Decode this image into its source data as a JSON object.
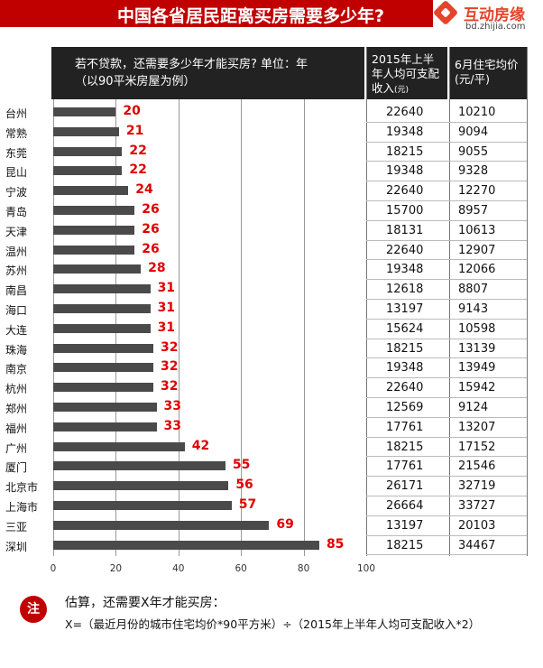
{
  "title": "中国各省居民距离买房需要多少年?",
  "logo": {
    "name": "互动房缘",
    "url": "bd.zhijia.com"
  },
  "table_header": {
    "question_line1": "若不贷款，还需要多少年才能买房?  单位：年",
    "question_line2": "（以90平米房屋为例）",
    "income_line1": "2015年上半",
    "income_line2": "年人均可支配",
    "income_line3": "收入",
    "income_unit": "(元)",
    "price_line1": "6月住宅均价",
    "price_line2": "(元/平)"
  },
  "chart_data": {
    "type": "bar",
    "orientation": "horizontal",
    "categories": [
      "台州",
      "常熟",
      "东莞",
      "昆山",
      "宁波",
      "青岛",
      "天津",
      "温州",
      "苏州",
      "南昌",
      "海口",
      "大连",
      "珠海",
      "南京",
      "杭州",
      "郑州",
      "福州",
      "广州",
      "厦门",
      "北京市",
      "上海市",
      "三亚",
      "深圳"
    ],
    "values": [
      20,
      21,
      22,
      22,
      24,
      26,
      26,
      26,
      28,
      31,
      31,
      31,
      32,
      32,
      32,
      33,
      33,
      42,
      55,
      56,
      57,
      69,
      85
    ],
    "income": [
      22640,
      19348,
      18215,
      19348,
      22640,
      15700,
      18131,
      22640,
      19348,
      12618,
      13197,
      15624,
      18215,
      19348,
      22640,
      12569,
      17761,
      18215,
      17761,
      26171,
      26664,
      13197,
      18215
    ],
    "price": [
      10210,
      9094,
      9055,
      9328,
      12270,
      8957,
      10613,
      12907,
      12066,
      8807,
      9143,
      10598,
      13139,
      13949,
      15942,
      9124,
      13207,
      17152,
      21546,
      32719,
      33727,
      20103,
      34467
    ],
    "xlim": [
      0,
      100
    ],
    "xticks": [
      "0",
      "20",
      "40",
      "60",
      "80",
      "100"
    ],
    "bar_color": "#4a4a4a",
    "label_color": "#e00000",
    "grid": true
  },
  "note": {
    "badge": "注",
    "line1": "估算，还需要X年才能买房：",
    "line2": "X=（最近月份的城市住宅均价*90平方米）÷（2015年上半年人均可支配收入*2）"
  },
  "colors": {
    "header_bar": "#c00000",
    "table_header": "#222222"
  }
}
